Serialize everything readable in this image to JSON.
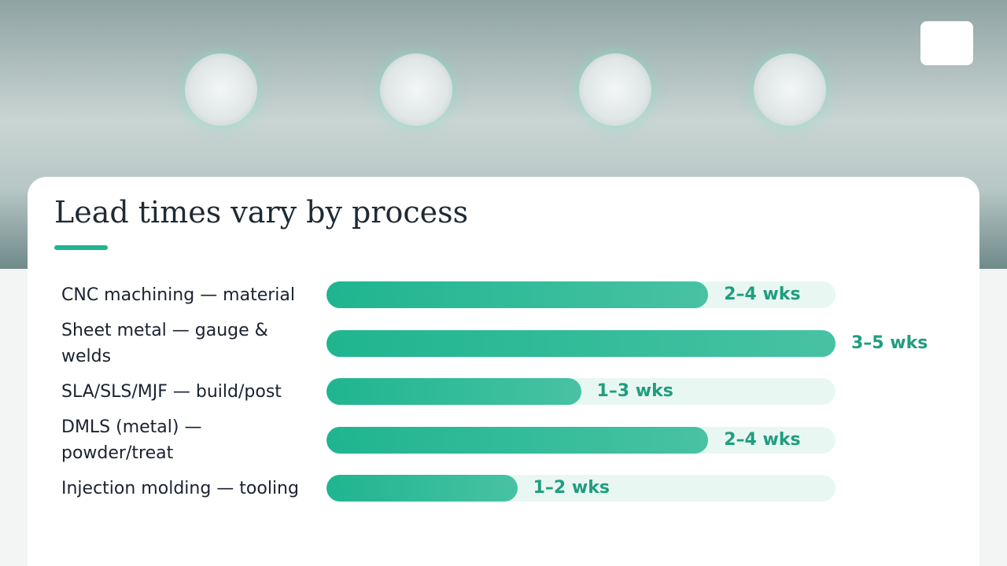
{
  "chart_data": {
    "type": "bar",
    "orientation": "horizontal",
    "title": "Lead times vary by process",
    "categories": [
      "CNC machining — material",
      "Sheet metal — gauge & welds",
      "SLA/SLS/MJF — build/post",
      "DMLS (metal) — powder/treat",
      "Injection molding — tooling"
    ],
    "values": [
      3,
      4,
      2,
      3,
      1.5
    ],
    "value_labels": [
      "2–4 wks",
      "3–5 wks",
      "1–3 wks",
      "2–4 wks",
      "1–2 wks"
    ],
    "xlim": [
      0,
      4
    ],
    "color": "#1fb58f"
  }
}
